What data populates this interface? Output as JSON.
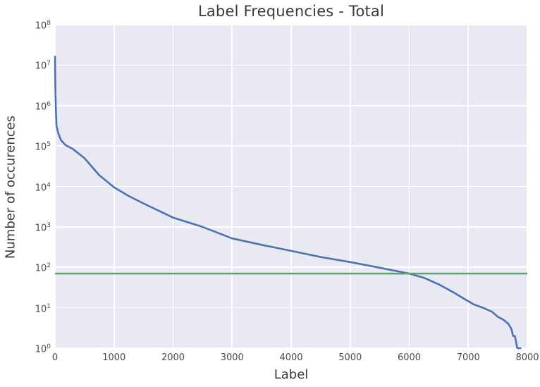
{
  "figure": {
    "title": "Label Frequencies - Total",
    "xlabel": "Label",
    "ylabel": "Number of occurences"
  },
  "chart_data": {
    "type": "line",
    "title": "Label Frequencies - Total",
    "xlabel": "Label",
    "ylabel": "Number of occurences",
    "yscale": "log",
    "xlim": [
      0,
      8000
    ],
    "ylim_log10": [
      0,
      8
    ],
    "x_ticks": [
      0,
      1000,
      2000,
      3000,
      4000,
      5000,
      6000,
      7000,
      8000
    ],
    "y_tick_exponents": [
      0,
      1,
      2,
      3,
      4,
      5,
      6,
      7,
      8
    ],
    "grid": true,
    "legend": "none",
    "plot_background_color": "#E8E9F2",
    "grid_color": "#FFFFFF",
    "series": [
      {
        "name": "label-frequency-curve",
        "kind": "line",
        "color": "#4C72B0",
        "x": [
          0,
          3,
          8,
          15,
          25,
          50,
          100,
          180,
          300,
          500,
          750,
          1000,
          1250,
          1500,
          2000,
          2500,
          3000,
          3500,
          4000,
          4500,
          5000,
          5500,
          6000,
          6250,
          6500,
          6750,
          6950,
          7100,
          7250,
          7400,
          7500,
          7600,
          7680,
          7730,
          7760,
          7790,
          7830,
          7900
        ],
        "y": [
          17000000,
          6000000,
          2000000,
          800000,
          320000,
          220000,
          140000,
          105000,
          85000,
          50000,
          19000,
          9500,
          5800,
          3800,
          1700,
          1000,
          520,
          360,
          255,
          180,
          135,
          98,
          70,
          55,
          38,
          24,
          16,
          12,
          10,
          8,
          6,
          5,
          4,
          3,
          2,
          2,
          1,
          1
        ]
      },
      {
        "name": "threshold-line",
        "kind": "hline",
        "color": "#55A868",
        "y": 70
      }
    ]
  }
}
